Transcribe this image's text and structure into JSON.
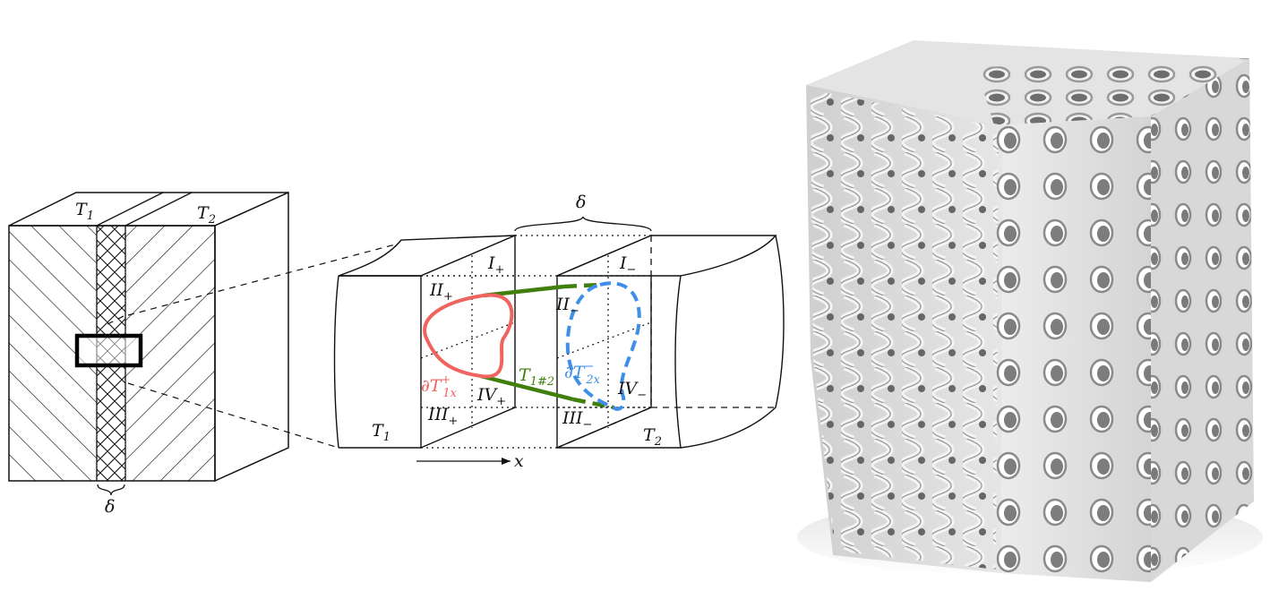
{
  "left_block": {
    "t1_main": "T",
    "t1_sub": "1",
    "t2_main": "T",
    "t2_sub": "2",
    "delta": "δ"
  },
  "zoom": {
    "delta": "δ",
    "region_i_plus_main": "I",
    "region_i_plus_sub": "+",
    "region_ii_plus_main": "II",
    "region_ii_plus_sub": "+",
    "region_iii_plus_main": "III",
    "region_iii_plus_sub": "+",
    "region_iv_plus_main": "IV",
    "region_iv_plus_sub": "+",
    "region_i_minus_main": "I",
    "region_i_minus_sub": "−",
    "region_ii_minus_main": "II",
    "region_ii_minus_sub": "−",
    "region_iii_minus_main": "III",
    "region_iii_minus_sub": "−",
    "region_iv_minus_main": "IV",
    "region_iv_minus_sub": "−",
    "boundary_1_main": "∂T",
    "boundary_1_sup": "+",
    "boundary_1_sub": "1x",
    "boundary_2_main": "∂T",
    "boundary_2_sup": "−",
    "boundary_2_sub": "2x",
    "connector_main": "T",
    "connector_sub": "1#2",
    "t1_main": "T",
    "t1_sub": "1",
    "t2_main": "T",
    "t2_sub": "2",
    "axis_label": "x"
  },
  "colors": {
    "boundary_1": "#f0645f",
    "boundary_2": "#3f8ee8",
    "connector": "#3f7f0c"
  },
  "render": {
    "description_icon": "lattice-cube-render-icon"
  }
}
